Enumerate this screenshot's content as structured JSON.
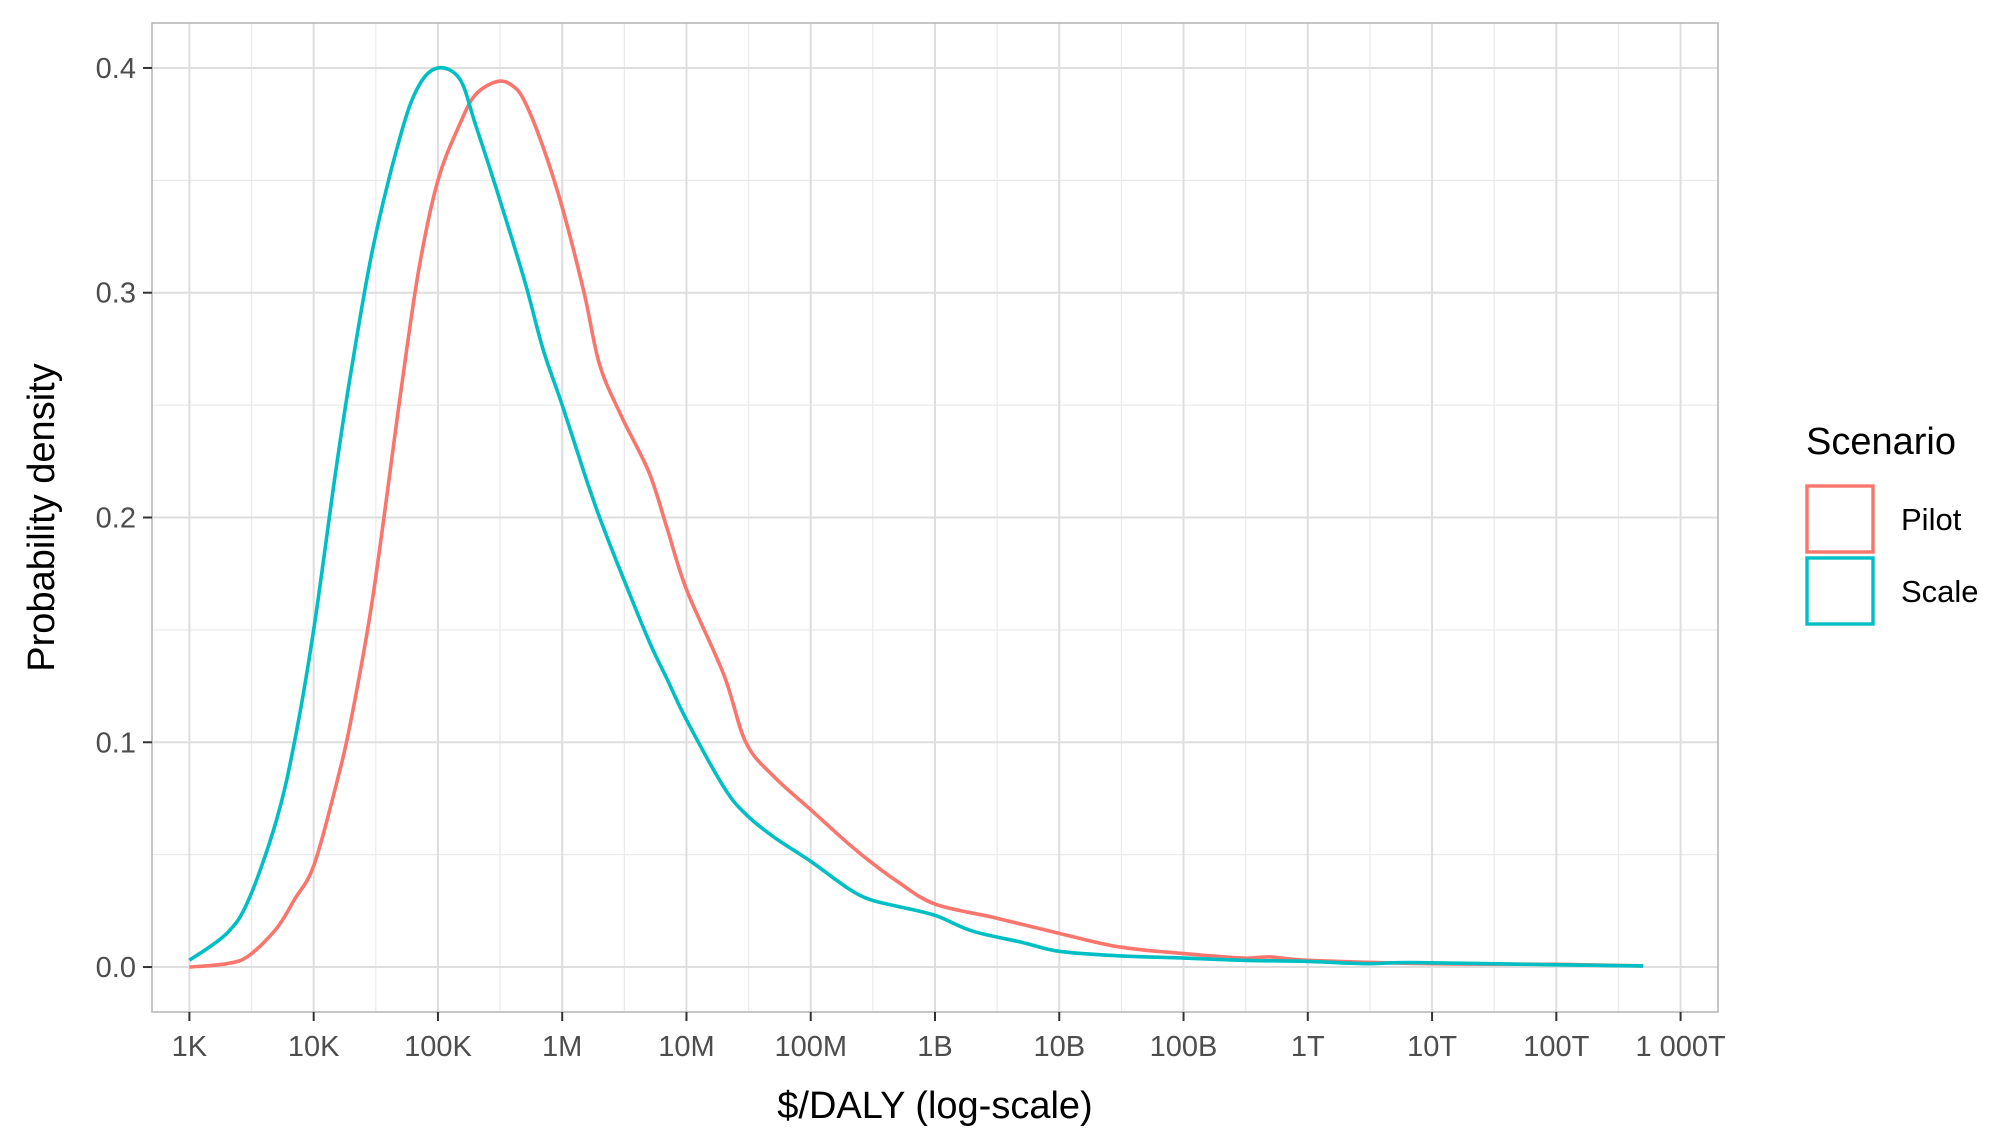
{
  "chart_data": {
    "type": "line",
    "xlabel": "$/DALY (log-scale)",
    "ylabel": "Probability density",
    "x_scale": "log10",
    "xlim": [
      500,
      2000000000000000
    ],
    "ylim": [
      -0.02,
      0.42
    ],
    "x_ticks": [
      {
        "value": 1000,
        "label": "1K"
      },
      {
        "value": 10000,
        "label": "10K"
      },
      {
        "value": 100000,
        "label": "100K"
      },
      {
        "value": 1000000,
        "label": "1M"
      },
      {
        "value": 10000000,
        "label": "10M"
      },
      {
        "value": 100000000,
        "label": "100M"
      },
      {
        "value": 1000000000,
        "label": "1B"
      },
      {
        "value": 10000000000,
        "label": "10B"
      },
      {
        "value": 100000000000,
        "label": "100B"
      },
      {
        "value": 1000000000000,
        "label": "1T"
      },
      {
        "value": 10000000000000,
        "label": "10T"
      },
      {
        "value": 100000000000000,
        "label": "100T"
      },
      {
        "value": 1000000000000000,
        "label": "1 000T"
      }
    ],
    "y_ticks": [
      {
        "value": 0.0,
        "label": "0.0"
      },
      {
        "value": 0.1,
        "label": "0.1"
      },
      {
        "value": 0.2,
        "label": "0.2"
      },
      {
        "value": 0.3,
        "label": "0.3"
      },
      {
        "value": 0.4,
        "label": "0.4"
      }
    ],
    "grid": true,
    "legend": {
      "title": "Scenario",
      "placement": "right"
    },
    "series": [
      {
        "name": "Pilot",
        "color": "#F8766D",
        "points": [
          [
            1000,
            0.0
          ],
          [
            2000,
            0.0015
          ],
          [
            3000,
            0.005
          ],
          [
            5000,
            0.017
          ],
          [
            7000,
            0.03
          ],
          [
            10000,
            0.045
          ],
          [
            15000,
            0.08
          ],
          [
            20000,
            0.11
          ],
          [
            30000,
            0.165
          ],
          [
            50000,
            0.255
          ],
          [
            70000,
            0.31
          ],
          [
            100000,
            0.35
          ],
          [
            150000,
            0.375
          ],
          [
            200000,
            0.388
          ],
          [
            300000,
            0.394
          ],
          [
            400000,
            0.392
          ],
          [
            500000,
            0.385
          ],
          [
            700000,
            0.365
          ],
          [
            1000000,
            0.338
          ],
          [
            1500000,
            0.3
          ],
          [
            2000000,
            0.268
          ],
          [
            3000000,
            0.245
          ],
          [
            5000000,
            0.22
          ],
          [
            7000000,
            0.195
          ],
          [
            10000000,
            0.168
          ],
          [
            20000000,
            0.13
          ],
          [
            30000000,
            0.1
          ],
          [
            50000000,
            0.085
          ],
          [
            100000000,
            0.07
          ],
          [
            200000000,
            0.055
          ],
          [
            300000000,
            0.047
          ],
          [
            500000000,
            0.038
          ],
          [
            1000000000,
            0.028
          ],
          [
            3000000000,
            0.022
          ],
          [
            10000000000,
            0.015
          ],
          [
            30000000000,
            0.009
          ],
          [
            100000000000,
            0.006
          ],
          [
            300000000000,
            0.004
          ],
          [
            500000000000,
            0.0045
          ],
          [
            1000000000000,
            0.003
          ],
          [
            10000000000000,
            0.0015
          ],
          [
            100000000000000,
            0.0012
          ],
          [
            500000000000000,
            0.0005
          ]
        ]
      },
      {
        "name": "Scale",
        "color": "#00BFC4",
        "points": [
          [
            1000,
            0.003
          ],
          [
            2000,
            0.015
          ],
          [
            3000,
            0.03
          ],
          [
            5000,
            0.065
          ],
          [
            7000,
            0.1
          ],
          [
            10000,
            0.15
          ],
          [
            15000,
            0.22
          ],
          [
            20000,
            0.265
          ],
          [
            30000,
            0.32
          ],
          [
            50000,
            0.37
          ],
          [
            70000,
            0.392
          ],
          [
            100000,
            0.4
          ],
          [
            150000,
            0.395
          ],
          [
            200000,
            0.375
          ],
          [
            300000,
            0.345
          ],
          [
            500000,
            0.305
          ],
          [
            700000,
            0.275
          ],
          [
            1000000,
            0.25
          ],
          [
            1500000,
            0.22
          ],
          [
            2000000,
            0.2
          ],
          [
            3000000,
            0.175
          ],
          [
            5000000,
            0.145
          ],
          [
            7000000,
            0.128
          ],
          [
            10000000,
            0.11
          ],
          [
            20000000,
            0.08
          ],
          [
            30000000,
            0.068
          ],
          [
            50000000,
            0.058
          ],
          [
            100000000,
            0.047
          ],
          [
            200000000,
            0.035
          ],
          [
            300000000,
            0.03
          ],
          [
            500000000,
            0.027
          ],
          [
            1000000000,
            0.023
          ],
          [
            2000000000,
            0.016
          ],
          [
            5000000000,
            0.011
          ],
          [
            10000000000,
            0.007
          ],
          [
            30000000000,
            0.005
          ],
          [
            100000000000,
            0.004
          ],
          [
            300000000000,
            0.003
          ],
          [
            1000000000000,
            0.0025
          ],
          [
            3000000000000,
            0.0015
          ],
          [
            7000000000000,
            0.002
          ],
          [
            100000000000000,
            0.001
          ],
          [
            500000000000000,
            0.0005
          ]
        ]
      }
    ]
  }
}
